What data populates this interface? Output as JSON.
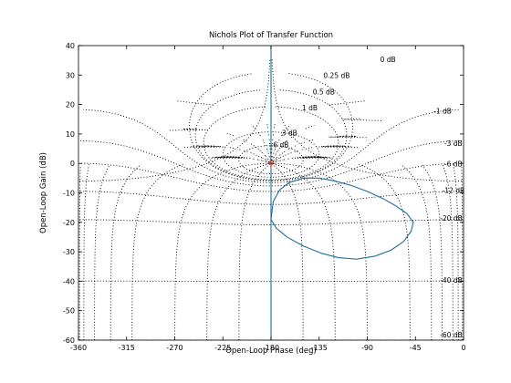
{
  "chart_data": {
    "type": "line",
    "title": "Nichols Plot of Transfer Function",
    "xlabel": "Open-Loop Phase (deg)",
    "ylabel": "Open-Loop Gain (dB)",
    "xlim": [
      -360,
      0
    ],
    "ylim": [
      -60,
      40
    ],
    "xticks": [
      -360,
      -315,
      -270,
      -225,
      -180,
      -135,
      -90,
      -45,
      0
    ],
    "yticks": [
      40,
      30,
      20,
      10,
      0,
      -10,
      -20,
      -30,
      -40,
      -50,
      -60
    ],
    "grid": "nichols",
    "colors": {
      "series": "#1f6fa0",
      "grid": "#000000",
      "critical": "#ff0000"
    },
    "grid_labels": [
      "0 dB",
      "0.25 dB",
      "0.5 dB",
      "1 dB",
      "3 dB",
      "6 dB",
      "-1 dB",
      "-3 dB",
      "-6 dB",
      "-12 dB",
      "-20 dB",
      "-40 dB",
      "-60 dB"
    ],
    "series": [
      {
        "points": [
          [
            -180,
            40
          ],
          [
            -180,
            -60
          ]
        ]
      },
      {
        "points": [
          [
            -180,
            -19
          ],
          [
            -178,
            -13
          ],
          [
            -172,
            -9
          ],
          [
            -163,
            -6.5
          ],
          [
            -150,
            -5
          ],
          [
            -135,
            -5
          ],
          [
            -120,
            -6
          ],
          [
            -105,
            -7.5
          ],
          [
            -90,
            -9.5
          ],
          [
            -75,
            -12
          ],
          [
            -63,
            -14.5
          ],
          [
            -53,
            -17
          ],
          [
            -47,
            -20
          ],
          [
            -49,
            -23
          ],
          [
            -56,
            -26.5
          ],
          [
            -68,
            -29.5
          ],
          [
            -83,
            -31.5
          ],
          [
            -100,
            -32.5
          ],
          [
            -117,
            -32
          ],
          [
            -133,
            -30.5
          ],
          [
            -150,
            -28
          ],
          [
            -165,
            -25
          ],
          [
            -175,
            -22
          ],
          [
            -180,
            -19
          ]
        ]
      }
    ]
  }
}
